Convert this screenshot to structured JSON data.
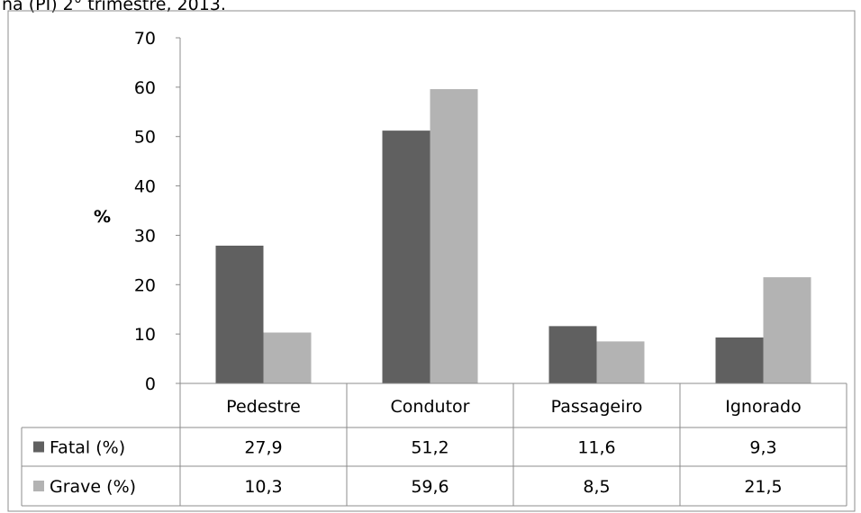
{
  "caption": "na (PI) 2° trimestre, 2013.",
  "chart_data": {
    "type": "bar",
    "title": "",
    "xlabel": "",
    "ylabel": "%",
    "ylim": [
      0,
      70
    ],
    "yticks": [
      0,
      10,
      20,
      30,
      40,
      50,
      60,
      70
    ],
    "categories": [
      "Pedestre",
      "Condutor",
      "Passageiro",
      "Ignorado"
    ],
    "series": [
      {
        "name": "Fatal (%)",
        "color": "#606060",
        "values": [
          27.9,
          51.2,
          11.6,
          9.3
        ],
        "labels": [
          "27,9",
          "51,2",
          "11,6",
          "9,3"
        ]
      },
      {
        "name": "Grave (%)",
        "color": "#b3b3b3",
        "values": [
          10.3,
          59.6,
          8.5,
          21.5
        ],
        "labels": [
          "10,3",
          "59,6",
          "8,5",
          "21,5"
        ]
      }
    ],
    "grid": false,
    "legend": "data-table"
  }
}
